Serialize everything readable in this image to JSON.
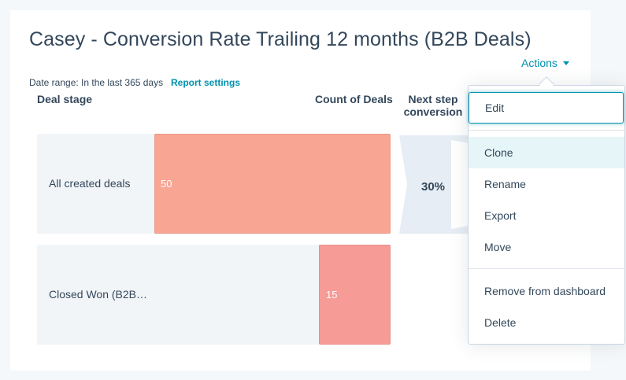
{
  "report": {
    "title": "Casey - Conversion Rate Trailing 12 months (B2B Deals)",
    "date_range": "Date range: In the last 365 days",
    "report_settings_link": "Report settings"
  },
  "actions": {
    "label": "Actions",
    "icon": "caret-down-icon"
  },
  "table": {
    "headers": {
      "deal_stage": "Deal stage",
      "count": "Count of Deals",
      "next_step_line1": "Next step",
      "next_step_line2": "conversion"
    },
    "rows": [
      {
        "stage": "All created deals",
        "count": "50",
        "color": "#f8a593"
      },
      {
        "stage": "Closed Won (B2B…",
        "count": "15",
        "color": "#f69b96"
      }
    ],
    "conversion": "30%"
  },
  "menu": {
    "items": [
      {
        "label": "Edit",
        "state": "focused"
      },
      {
        "label": "Clone",
        "state": "hover"
      },
      {
        "label": "Rename",
        "state": "normal"
      },
      {
        "label": "Export",
        "state": "normal"
      },
      {
        "label": "Move",
        "state": "normal"
      },
      {
        "label": "Remove from dashboard",
        "state": "normal"
      },
      {
        "label": "Delete",
        "state": "normal"
      }
    ]
  },
  "colors": {
    "accent": "#0091ae",
    "text": "#33475b",
    "row_background": "#f2f5f8",
    "bar_primary": "#f8a593",
    "bar_secondary": "#f69b96"
  }
}
